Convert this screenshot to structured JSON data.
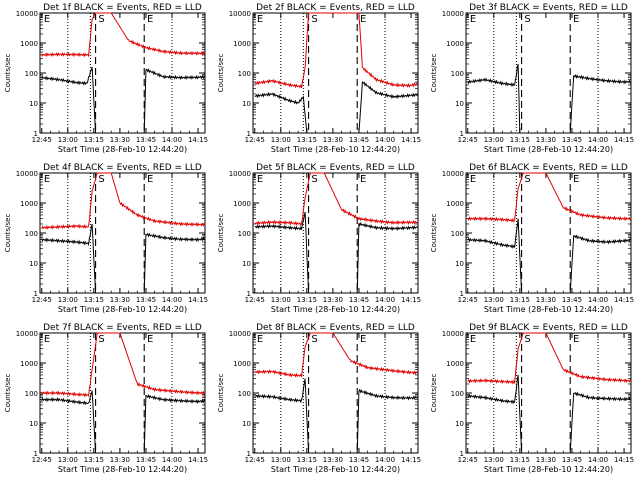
{
  "figure": {
    "legend_text": "BLACK = Events, RED = LLD",
    "xlabel": "Start Time (28-Feb-10 12:44:20)",
    "ylabel": "Counts/sec",
    "marker_labels": [
      "E",
      "S",
      "E"
    ],
    "colors": {
      "events": "#000000",
      "lld": "#e00000"
    }
  },
  "chart_data": [
    {
      "type": "line",
      "title": "Det 1f",
      "x_ticks": [
        "12:45",
        "13:00",
        "13:15",
        "13:30",
        "13:45",
        "14:00",
        "14:15"
      ],
      "y_scale": "log",
      "ylim": [
        1,
        10000
      ],
      "y_ticks": [
        "1",
        "10",
        "100",
        "1000",
        "10000"
      ],
      "series": [
        {
          "name": "Events",
          "x": [
            "12:45",
            "12:55",
            "13:05",
            "13:11",
            "13:14",
            "13:16",
            "13:44",
            "13:45",
            "13:55",
            "14:05",
            "14:15",
            "14:19"
          ],
          "values": [
            70,
            60,
            48,
            45,
            160,
            1,
            1,
            130,
            75,
            70,
            72,
            74
          ]
        },
        {
          "name": "LLD",
          "x": [
            "12:45",
            "12:55",
            "13:05",
            "13:12",
            "13:14",
            "13:16",
            "13:25",
            "13:35",
            "13:45",
            "13:55",
            "14:05",
            "14:19"
          ],
          "values": [
            400,
            420,
            410,
            400,
            6000,
            10000,
            10000,
            1200,
            700,
            520,
            460,
            450
          ]
        }
      ]
    },
    {
      "type": "line",
      "title": "Det 2f",
      "x_ticks": [
        "12:45",
        "13:00",
        "13:15",
        "13:30",
        "13:45",
        "14:00",
        "14:15"
      ],
      "y_scale": "log",
      "ylim": [
        1,
        10000
      ],
      "y_ticks": [
        "1",
        "10",
        "100",
        "1000",
        "10000"
      ],
      "series": [
        {
          "name": "Events",
          "x": [
            "12:45",
            "12:55",
            "13:05",
            "13:10",
            "13:13",
            "13:15",
            "13:45",
            "13:47",
            "13:55",
            "14:05",
            "14:15",
            "14:19"
          ],
          "values": [
            17,
            20,
            12,
            10,
            16,
            1,
            1,
            50,
            22,
            16,
            18,
            19
          ]
        },
        {
          "name": "LLD",
          "x": [
            "12:45",
            "12:55",
            "13:05",
            "13:12",
            "13:14",
            "13:16",
            "13:45",
            "13:47",
            "13:55",
            "14:05",
            "14:15",
            "14:19"
          ],
          "values": [
            45,
            55,
            40,
            35,
            150,
            10000,
            10000,
            150,
            60,
            40,
            38,
            45
          ]
        }
      ]
    },
    {
      "type": "line",
      "title": "Det 3f",
      "x_ticks": [
        "12:45",
        "13:00",
        "13:15",
        "13:30",
        "13:45",
        "14:00",
        "14:15"
      ],
      "y_scale": "log",
      "ylim": [
        1,
        10000
      ],
      "y_ticks": [
        "1",
        "10",
        "100",
        "1000",
        "10000"
      ],
      "series": [
        {
          "name": "Events",
          "x": [
            "12:45",
            "12:55",
            "13:05",
            "13:12",
            "13:14",
            "13:15",
            "13:44",
            "13:46",
            "13:55",
            "14:05",
            "14:15",
            "14:19"
          ],
          "values": [
            50,
            60,
            45,
            40,
            200,
            1,
            1,
            80,
            65,
            55,
            50,
            52
          ]
        }
      ]
    },
    {
      "type": "line",
      "title": "Det 4f",
      "x_ticks": [
        "12:45",
        "13:00",
        "13:15",
        "13:30",
        "13:45",
        "14:00",
        "14:15"
      ],
      "y_scale": "log",
      "ylim": [
        1,
        10000
      ],
      "y_ticks": [
        "1",
        "10",
        "100",
        "1000",
        "10000"
      ],
      "series": [
        {
          "name": "Events",
          "x": [
            "12:45",
            "12:55",
            "13:05",
            "13:12",
            "13:14",
            "13:16",
            "13:44",
            "13:45",
            "13:55",
            "14:05",
            "14:15",
            "14:19"
          ],
          "values": [
            60,
            55,
            50,
            45,
            200,
            1,
            1,
            90,
            70,
            62,
            60,
            65
          ]
        },
        {
          "name": "LLD",
          "x": [
            "12:45",
            "12:55",
            "13:05",
            "13:12",
            "13:14",
            "13:17",
            "13:25",
            "13:30",
            "13:40",
            "13:50",
            "14:05",
            "14:19"
          ],
          "values": [
            150,
            160,
            170,
            160,
            2500,
            10000,
            10000,
            1000,
            400,
            250,
            200,
            190
          ]
        }
      ]
    },
    {
      "type": "line",
      "title": "Det 5f",
      "x_ticks": [
        "12:45",
        "13:00",
        "13:15",
        "13:30",
        "13:45",
        "14:00",
        "14:15"
      ],
      "y_scale": "log",
      "ylim": [
        1,
        10000
      ],
      "y_ticks": [
        "1",
        "10",
        "100",
        "1000",
        "10000"
      ],
      "series": [
        {
          "name": "Events",
          "x": [
            "12:45",
            "12:55",
            "13:05",
            "13:12",
            "13:14",
            "13:16",
            "13:44",
            "13:45",
            "13:55",
            "14:05",
            "14:15",
            "14:19"
          ],
          "values": [
            160,
            170,
            150,
            140,
            500,
            1,
            1,
            200,
            150,
            140,
            150,
            155
          ]
        },
        {
          "name": "LLD",
          "x": [
            "12:45",
            "12:55",
            "13:05",
            "13:12",
            "13:14",
            "13:17",
            "13:25",
            "13:35",
            "13:45",
            "13:55",
            "14:05",
            "14:19"
          ],
          "values": [
            210,
            230,
            220,
            200,
            1500,
            10000,
            10000,
            600,
            300,
            250,
            220,
            230
          ]
        }
      ]
    },
    {
      "type": "line",
      "title": "Det 6f",
      "x_ticks": [
        "12:45",
        "13:00",
        "13:15",
        "13:30",
        "13:45",
        "14:00",
        "14:15"
      ],
      "y_scale": "log",
      "ylim": [
        1,
        10000
      ],
      "y_ticks": [
        "1",
        "10",
        "100",
        "1000",
        "10000"
      ],
      "series": [
        {
          "name": "Events",
          "x": [
            "12:45",
            "12:55",
            "13:05",
            "13:12",
            "13:14",
            "13:16",
            "13:44",
            "13:46",
            "13:55",
            "14:05",
            "14:15",
            "14:19"
          ],
          "values": [
            60,
            55,
            40,
            35,
            300,
            1,
            1,
            80,
            55,
            50,
            55,
            58
          ]
        },
        {
          "name": "LLD",
          "x": [
            "12:45",
            "12:55",
            "13:05",
            "13:12",
            "13:14",
            "13:17",
            "13:30",
            "13:40",
            "13:50",
            "14:05",
            "14:15",
            "14:19"
          ],
          "values": [
            300,
            300,
            280,
            260,
            3000,
            10000,
            10000,
            700,
            400,
            320,
            300,
            300
          ]
        }
      ]
    },
    {
      "type": "line",
      "title": "Det 7f",
      "x_ticks": [
        "12:45",
        "13:00",
        "13:15",
        "13:30",
        "13:45",
        "14:00",
        "14:15"
      ],
      "y_scale": "log",
      "ylim": [
        1,
        10000
      ],
      "y_ticks": [
        "1",
        "10",
        "100",
        "1000",
        "10000"
      ],
      "series": [
        {
          "name": "Events",
          "x": [
            "12:45",
            "12:55",
            "13:05",
            "13:12",
            "13:14",
            "13:16",
            "13:44",
            "13:45",
            "13:55",
            "14:05",
            "14:15",
            "14:19"
          ],
          "values": [
            60,
            60,
            50,
            45,
            120,
            1,
            1,
            80,
            60,
            55,
            52,
            55
          ]
        },
        {
          "name": "LLD",
          "x": [
            "12:45",
            "12:55",
            "13:05",
            "13:12",
            "13:14",
            "13:17",
            "13:30",
            "13:40",
            "13:50",
            "14:05",
            "14:15",
            "14:19"
          ],
          "values": [
            100,
            100,
            90,
            85,
            600,
            10000,
            10000,
            200,
            130,
            110,
            100,
            100
          ]
        }
      ]
    },
    {
      "type": "line",
      "title": "Det 8f",
      "x_ticks": [
        "12:45",
        "13:00",
        "13:15",
        "13:30",
        "13:45",
        "14:00",
        "14:15"
      ],
      "y_scale": "log",
      "ylim": [
        1,
        10000
      ],
      "y_ticks": [
        "1",
        "10",
        "100",
        "1000",
        "10000"
      ],
      "series": [
        {
          "name": "Events",
          "x": [
            "12:45",
            "12:55",
            "13:05",
            "13:12",
            "13:14",
            "13:16",
            "13:44",
            "13:45",
            "13:55",
            "14:05",
            "14:15",
            "14:19"
          ],
          "values": [
            80,
            75,
            60,
            55,
            300,
            1,
            1,
            120,
            80,
            70,
            68,
            72
          ]
        },
        {
          "name": "LLD",
          "x": [
            "12:45",
            "12:55",
            "13:05",
            "13:12",
            "13:14",
            "13:17",
            "13:30",
            "13:40",
            "13:50",
            "14:05",
            "14:15",
            "14:19"
          ],
          "values": [
            500,
            520,
            400,
            380,
            3500,
            10000,
            10000,
            1200,
            700,
            550,
            480,
            470
          ]
        }
      ]
    },
    {
      "type": "line",
      "title": "Det 9f",
      "x_ticks": [
        "12:45",
        "13:00",
        "13:15",
        "13:30",
        "13:45",
        "14:00",
        "14:15"
      ],
      "y_scale": "log",
      "ylim": [
        1,
        10000
      ],
      "y_ticks": [
        "1",
        "10",
        "100",
        "1000",
        "10000"
      ],
      "series": [
        {
          "name": "Events",
          "x": [
            "12:45",
            "12:55",
            "13:05",
            "13:12",
            "13:14",
            "13:16",
            "13:44",
            "13:46",
            "13:55",
            "14:05",
            "14:15",
            "14:19"
          ],
          "values": [
            80,
            70,
            55,
            50,
            400,
            1,
            1,
            100,
            70,
            65,
            62,
            65
          ]
        },
        {
          "name": "LLD",
          "x": [
            "12:45",
            "12:55",
            "13:05",
            "13:12",
            "13:14",
            "13:17",
            "13:30",
            "13:40",
            "13:50",
            "14:05",
            "14:15",
            "14:19"
          ],
          "values": [
            250,
            260,
            240,
            230,
            3000,
            10000,
            10000,
            600,
            350,
            280,
            260,
            250
          ]
        }
      ]
    }
  ]
}
